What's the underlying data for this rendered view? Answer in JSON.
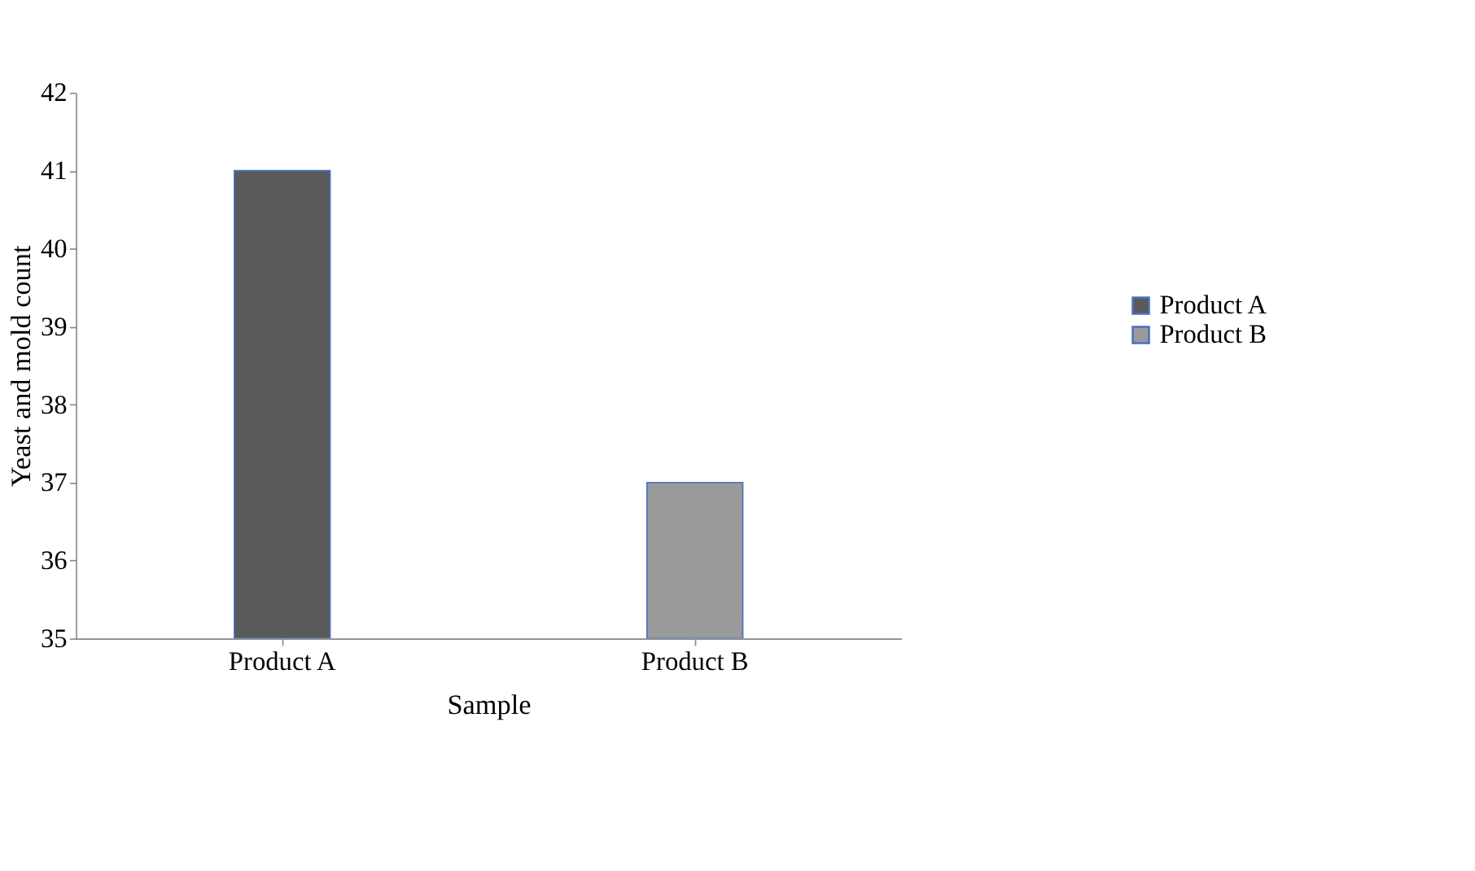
{
  "chart_data": {
    "type": "bar",
    "xlabel": "Sample",
    "ylabel": "Yeast and mold count",
    "categories": [
      "Product A",
      "Product B"
    ],
    "series": [
      {
        "name": "Product A",
        "color": "#5a5a5a",
        "values": [
          41,
          null
        ]
      },
      {
        "name": "Product B",
        "color": "#9a9a9a",
        "values": [
          null,
          37
        ]
      }
    ],
    "ylim": [
      35,
      42
    ],
    "yticks": [
      35,
      36,
      37,
      38,
      39,
      40,
      41,
      42
    ],
    "grid": false,
    "legend": "right"
  }
}
